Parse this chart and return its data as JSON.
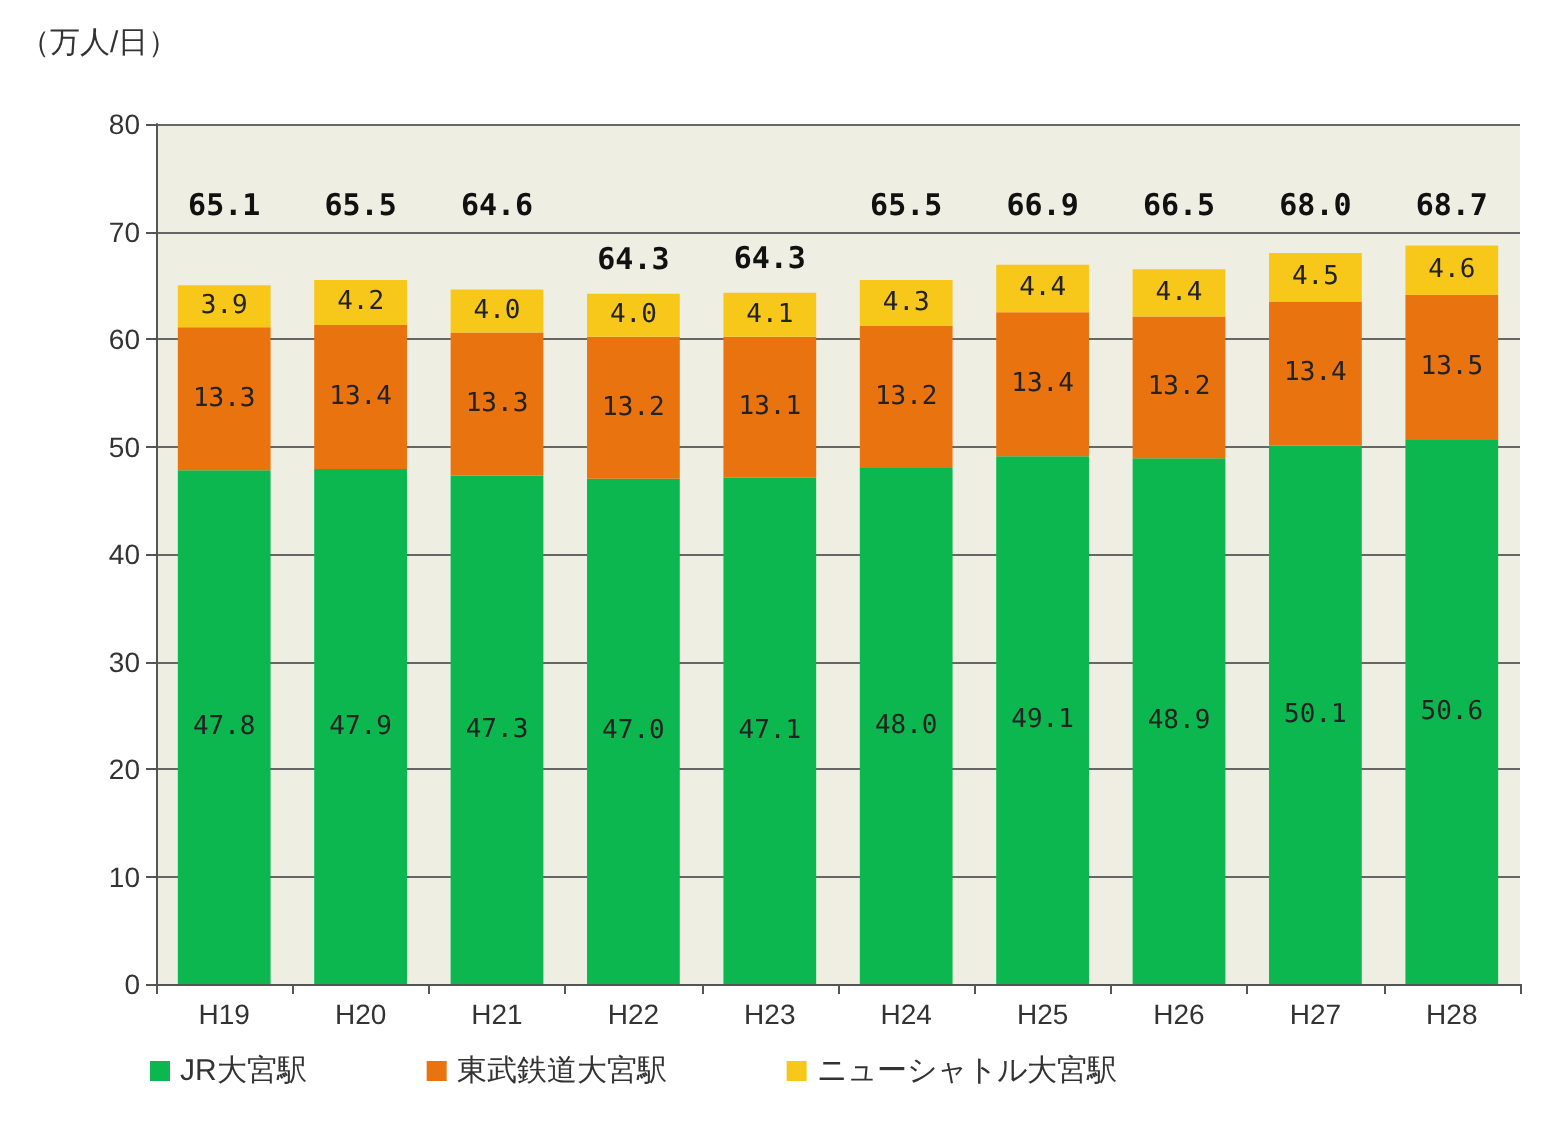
{
  "chart_data": {
    "type": "bar",
    "stacked": true,
    "ylabel": "（万人/日）",
    "categories": [
      "H19",
      "H20",
      "H21",
      "H22",
      "H23",
      "H24",
      "H25",
      "H26",
      "H27",
      "H28"
    ],
    "series": [
      {
        "name": "JR大宮駅",
        "color": "#0bb74e",
        "values": [
          47.8,
          47.9,
          47.3,
          47.0,
          47.1,
          48.0,
          49.1,
          48.9,
          50.1,
          50.6
        ],
        "value_labels": [
          "47.8",
          "47.9",
          "47.3",
          "47.0",
          "47.1",
          "48.0",
          "49.1",
          "48.9",
          "50.1",
          "50.6"
        ]
      },
      {
        "name": "東武鉄道大宮駅",
        "color": "#e8730f",
        "values": [
          13.3,
          13.4,
          13.3,
          13.2,
          13.1,
          13.2,
          13.4,
          13.2,
          13.4,
          13.5
        ],
        "value_labels": [
          "13.3",
          "13.4",
          "13.3",
          "13.2",
          "13.1",
          "13.2",
          "13.4",
          "13.2",
          "13.4",
          "13.5"
        ]
      },
      {
        "name": "ニューシャトル大宮駅",
        "color": "#f7c81a",
        "values": [
          3.9,
          4.2,
          4.0,
          4.0,
          4.1,
          4.3,
          4.4,
          4.4,
          4.5,
          4.6
        ],
        "value_labels": [
          "3.9",
          "4.2",
          "4.0",
          "4.0",
          "4.1",
          "4.3",
          "4.4",
          "4.4",
          "4.5",
          "4.6"
        ]
      }
    ],
    "totals": [
      "65.1",
      "65.5",
      "64.6",
      "64.3",
      "64.3",
      "65.5",
      "66.9",
      "66.5",
      "68.0",
      "68.7"
    ],
    "ylim": [
      0,
      80
    ],
    "yticks": [
      0,
      10,
      20,
      30,
      40,
      50,
      60,
      70,
      80
    ],
    "grid": "y",
    "legend": "bottom"
  }
}
